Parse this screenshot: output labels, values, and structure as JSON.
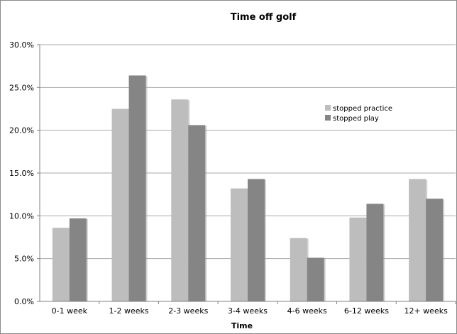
{
  "chart_data": {
    "type": "bar",
    "title": "Time off golf",
    "xlabel": "Time",
    "ylabel": "",
    "ylim": [
      0,
      30
    ],
    "yticks": [
      "0.0%",
      "5.0%",
      "10.0%",
      "15.0%",
      "20.0%",
      "25.0%",
      "30.0%"
    ],
    "categories": [
      "0-1 week",
      "1-2 weeks",
      "2-3 weeks",
      "3-4 weeks",
      "4-6 weeks",
      "6-12 weeks",
      "12+ weeks"
    ],
    "series": [
      {
        "name": "stopped practice",
        "color": "#bdbdbd",
        "values": [
          8.6,
          22.5,
          23.6,
          13.2,
          7.4,
          9.8,
          14.3
        ]
      },
      {
        "name": "stopped play",
        "color": "#858585",
        "values": [
          9.7,
          26.4,
          20.6,
          14.3,
          5.1,
          11.4,
          12.0
        ]
      }
    ],
    "grid": true,
    "legend": "right"
  }
}
